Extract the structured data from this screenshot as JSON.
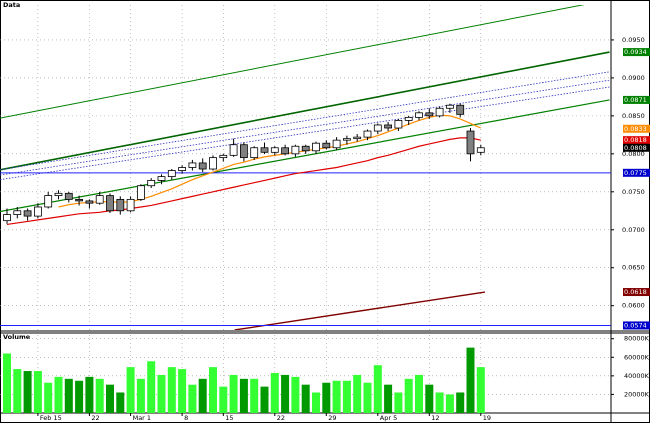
{
  "chart_data": {
    "type": "candlestick",
    "title": "Data",
    "categories": [
      null,
      null,
      null,
      "Feb 15",
      null,
      null,
      null,
      null,
      "22",
      null,
      null,
      null,
      "Mar 1",
      null,
      null,
      null,
      null,
      "8",
      null,
      null,
      null,
      "15",
      null,
      null,
      null,
      null,
      "22",
      null,
      null,
      null,
      null,
      "29",
      null,
      null,
      null,
      null,
      "Apr 5",
      null,
      null,
      null,
      null,
      "12",
      null,
      null,
      null,
      null,
      "19"
    ],
    "ohlc": {
      "open": [
        0.0712,
        0.072,
        0.0725,
        0.0718,
        0.073,
        0.0745,
        0.0748,
        0.074,
        0.0738,
        0.0735,
        0.0745,
        0.074,
        0.0725,
        0.074,
        0.0758,
        0.0765,
        0.077,
        0.0778,
        0.0782,
        0.0788,
        0.078,
        0.0795,
        0.0798,
        0.0812,
        0.0795,
        0.0808,
        0.0802,
        0.0808,
        0.08,
        0.081,
        0.0804,
        0.0814,
        0.0808,
        0.0818,
        0.082,
        0.0822,
        0.083,
        0.0838,
        0.0834,
        0.0844,
        0.0848,
        0.0854,
        0.085,
        0.086,
        0.0864,
        0.083,
        0.0802
      ],
      "high": [
        0.0728,
        0.073,
        0.0728,
        0.0735,
        0.075,
        0.0752,
        0.075,
        0.0745,
        0.074,
        0.075,
        0.0748,
        0.0744,
        0.0744,
        0.076,
        0.0768,
        0.0773,
        0.078,
        0.0785,
        0.0792,
        0.0794,
        0.0798,
        0.08,
        0.082,
        0.0815,
        0.081,
        0.0815,
        0.081,
        0.0812,
        0.0812,
        0.0812,
        0.0816,
        0.0818,
        0.0822,
        0.0824,
        0.0826,
        0.0832,
        0.084,
        0.0842,
        0.0846,
        0.085,
        0.0856,
        0.086,
        0.0862,
        0.0866,
        0.0866,
        0.0834,
        0.0812
      ],
      "low": [
        0.0708,
        0.0715,
        0.0712,
        0.0715,
        0.0728,
        0.074,
        0.0736,
        0.0732,
        0.0728,
        0.0733,
        0.0722,
        0.072,
        0.0723,
        0.0738,
        0.0755,
        0.076,
        0.0766,
        0.0774,
        0.0778,
        0.0776,
        0.0778,
        0.079,
        0.0796,
        0.079,
        0.0792,
        0.08,
        0.0798,
        0.0798,
        0.0796,
        0.08,
        0.08,
        0.0806,
        0.0805,
        0.0812,
        0.0816,
        0.0818,
        0.0826,
        0.083,
        0.083,
        0.0838,
        0.0844,
        0.0846,
        0.0848,
        0.0854,
        0.0848,
        0.079,
        0.0798
      ],
      "close": [
        0.072,
        0.0725,
        0.0718,
        0.073,
        0.0745,
        0.0748,
        0.074,
        0.0738,
        0.0735,
        0.0745,
        0.0725,
        0.0725,
        0.074,
        0.0758,
        0.0765,
        0.077,
        0.0778,
        0.0782,
        0.0788,
        0.078,
        0.0795,
        0.0798,
        0.0812,
        0.0795,
        0.0808,
        0.0802,
        0.0808,
        0.08,
        0.081,
        0.0804,
        0.0814,
        0.0808,
        0.0818,
        0.082,
        0.0822,
        0.083,
        0.0838,
        0.0834,
        0.0844,
        0.0848,
        0.0854,
        0.085,
        0.086,
        0.0864,
        0.0852,
        0.08,
        0.0808
      ]
    },
    "up_color": "#ffffff",
    "down_color": "#808080",
    "ylim": [
      0.0568,
      0.0996
    ],
    "yticks": [
      {
        "value": 0.06,
        "label": "0.0600"
      },
      {
        "value": 0.065,
        "label": "0.0650"
      },
      {
        "value": 0.07,
        "label": "0.0700"
      },
      {
        "value": 0.075,
        "label": "0.0750"
      },
      {
        "value": 0.08,
        "label": "0.0800"
      },
      {
        "value": 0.085,
        "label": "0.0850"
      },
      {
        "value": 0.09,
        "label": "0.0900"
      },
      {
        "value": 0.095,
        "label": "0.0950"
      }
    ],
    "grid": true,
    "averages": [
      {
        "color": "#e00000",
        "values": [
          0.0707,
          0.0709,
          0.0711,
          0.0713,
          0.0715,
          0.0717,
          0.0719,
          0.0721,
          0.0722,
          0.0723,
          0.0725,
          0.0726,
          0.0728,
          0.073,
          0.0732,
          0.0735,
          0.0738,
          0.0741,
          0.0744,
          0.0747,
          0.075,
          0.0753,
          0.0756,
          0.0759,
          0.0762,
          0.0765,
          0.0768,
          0.0771,
          0.0774,
          0.0776,
          0.0778,
          0.078,
          0.0782,
          0.0785,
          0.0788,
          0.0791,
          0.0795,
          0.0798,
          0.0802,
          0.0806,
          0.081,
          0.0813,
          0.0816,
          0.0819,
          0.0821,
          0.0821,
          0.0818
        ]
      },
      {
        "color": "#ff8c00",
        "values": [
          null,
          null,
          null,
          null,
          null,
          0.073,
          0.0733,
          0.0735,
          0.0736,
          0.0737,
          0.0737,
          0.0736,
          0.0737,
          0.074,
          0.0744,
          0.0749,
          0.0754,
          0.076,
          0.0766,
          0.0771,
          0.0776,
          0.0781,
          0.0786,
          0.0789,
          0.0793,
          0.0796,
          0.0798,
          0.08,
          0.0802,
          0.0804,
          0.0806,
          0.0808,
          0.081,
          0.0813,
          0.0816,
          0.082,
          0.0824,
          0.0829,
          0.0834,
          0.0839,
          0.0844,
          0.0848,
          0.0851,
          0.085,
          0.0846,
          0.084,
          0.0834
        ]
      }
    ],
    "trend_lines": [
      {
        "color": "#008000",
        "width": 1,
        "x": [
          -0.68,
          58.5
        ],
        "values": [
          0.0847,
          0.1003
        ]
      },
      {
        "color": "#006400",
        "width": 1.6,
        "x": [
          -0.68,
          58.5
        ],
        "values": [
          0.0779,
          0.0934
        ]
      },
      {
        "color": "#008000",
        "width": 1.2,
        "x": [
          -0.68,
          58.5
        ],
        "values": [
          0.0724,
          0.0871
        ]
      },
      {
        "color": "#3030c0",
        "width": 0.8,
        "dash": true,
        "x": [
          -0.68,
          58.5
        ],
        "values": [
          0.0779,
          0.0908
        ]
      },
      {
        "color": "#3030c0",
        "width": 0.8,
        "dash": true,
        "x": [
          -0.68,
          58.5
        ],
        "values": [
          0.0772,
          0.0897
        ]
      },
      {
        "color": "#3030c0",
        "width": 0.8,
        "dash": true,
        "x": [
          -0.68,
          58.5
        ],
        "values": [
          0.0766,
          0.0888
        ]
      },
      {
        "color": "#800000",
        "width": 1.4,
        "x": [
          22.1,
          46.4
        ],
        "values": [
          0.0568,
          0.0618
        ]
      }
    ],
    "hlines": [
      {
        "color": "#2020ff",
        "value": 0.0775
      },
      {
        "color": "#2020ff",
        "value": 0.0574
      }
    ],
    "price_markers": [
      {
        "color": "#008000",
        "value": 0.0934
      },
      {
        "color": "#008000",
        "value": 0.0871
      },
      {
        "color": "#ff8c00",
        "value": 0.0833
      },
      {
        "color": "#e00000",
        "value": 0.0818
      },
      {
        "color": "#000000",
        "value": 0.0808
      },
      {
        "color": "#0000cc",
        "value": 0.0775
      },
      {
        "color": "#800000",
        "value": 0.0618
      },
      {
        "color": "#0000cc",
        "value": 0.0574
      }
    ],
    "volume": {
      "title": "Volume",
      "up_color": "#33ff33",
      "down_color": "#009900",
      "values": [
        64100,
        47300,
        45200,
        45200,
        32600,
        38900,
        36800,
        34700,
        38900,
        36800,
        30500,
        22100,
        49400,
        36800,
        55700,
        41000,
        49400,
        47300,
        30500,
        36800,
        49400,
        28400,
        41000,
        36800,
        36800,
        28400,
        43100,
        41000,
        38900,
        30500,
        22100,
        32600,
        34700,
        34700,
        41000,
        32600,
        51500,
        30500,
        22100,
        36800,
        41000,
        30500,
        22100,
        20000,
        22100,
        70400,
        49400
      ],
      "ylim": [
        0,
        84000
      ],
      "yticks": [
        {
          "value": 20000,
          "label": "20000K"
        },
        {
          "value": 40000,
          "label": "40000K"
        },
        {
          "value": 60000,
          "label": "60000K"
        },
        {
          "value": 80000,
          "label": "80000K"
        }
      ]
    }
  }
}
